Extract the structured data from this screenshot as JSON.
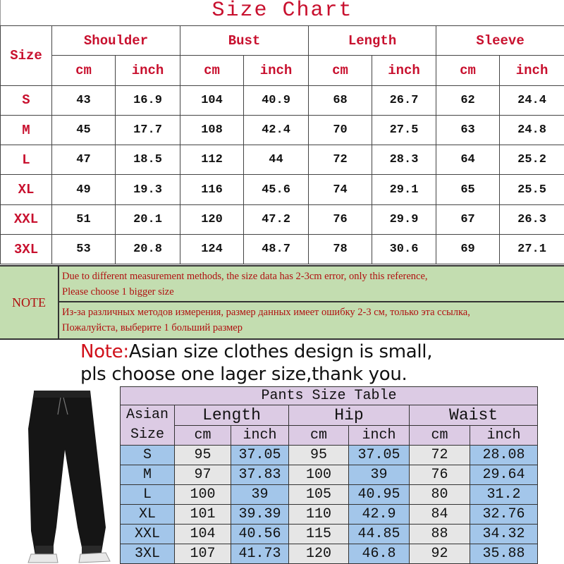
{
  "title": "Size  Chart",
  "top_table": {
    "size_label": "Size",
    "groups": [
      "Shoulder",
      "Bust",
      "Length",
      "Sleeve"
    ],
    "units": [
      "cm",
      "inch",
      "cm",
      "inch",
      "cm",
      "inch",
      "cm",
      "inch"
    ],
    "rows": [
      [
        "S",
        "43",
        "16.9",
        "104",
        "40.9",
        "68",
        "26.7",
        "62",
        "24.4"
      ],
      [
        "M",
        "45",
        "17.7",
        "108",
        "42.4",
        "70",
        "27.5",
        "63",
        "24.8"
      ],
      [
        "L",
        "47",
        "18.5",
        "112",
        "44",
        "72",
        "28.3",
        "64",
        "25.2"
      ],
      [
        "XL",
        "49",
        "19.3",
        "116",
        "45.6",
        "74",
        "29.1",
        "65",
        "25.5"
      ],
      [
        "XXL",
        "51",
        "20.1",
        "120",
        "47.2",
        "76",
        "29.9",
        "67",
        "26.3"
      ],
      [
        "3XL",
        "53",
        "20.8",
        "124",
        "48.7",
        "78",
        "30.6",
        "69",
        "27.1"
      ]
    ]
  },
  "note": {
    "label": "NOTE",
    "en_line1": "Due to different measurement methods, the size data has 2-3cm error, only this reference,",
    "en_line2": "Please choose 1 bigger size",
    "ru_line1": "Из-за различных методов измерения, размер данных имеет ошибку 2-3 см, только эта ссылка,",
    "ru_line2": "Пожалуйста, выберите 1 больший размер"
  },
  "asian_note": {
    "label": "Note:",
    "line1": "Asian size clothes design is small,",
    "line2": "pls choose one lager size,thank you."
  },
  "pants_table": {
    "title": "Pants Size Table",
    "size_label_1": "Asian",
    "size_label_2": "Size",
    "groups": [
      "Length",
      "Hip",
      "Waist"
    ],
    "units": [
      "cm",
      "inch",
      "cm",
      "inch",
      "cm",
      "inch"
    ],
    "rows": [
      [
        "S",
        "95",
        "37.05",
        "95",
        "37.05",
        "72",
        "28.08"
      ],
      [
        "M",
        "97",
        "37.83",
        "100",
        "39",
        "76",
        "29.64"
      ],
      [
        "L",
        "100",
        "39",
        "105",
        "40.95",
        "80",
        "31.2"
      ],
      [
        "XL",
        "101",
        "39.39",
        "110",
        "42.9",
        "84",
        "32.76"
      ],
      [
        "XXL",
        "104",
        "40.56",
        "115",
        "44.85",
        "88",
        "34.32"
      ],
      [
        "3XL",
        "107",
        "41.73",
        "120",
        "46.8",
        "92",
        "35.88"
      ]
    ]
  },
  "colors": {
    "red": "#c8102e",
    "note_bg": "#c3ddb0",
    "header_purple": "#dccbe4",
    "cell_blue": "#a3c6ea",
    "cell_gray": "#e6e6e6"
  }
}
